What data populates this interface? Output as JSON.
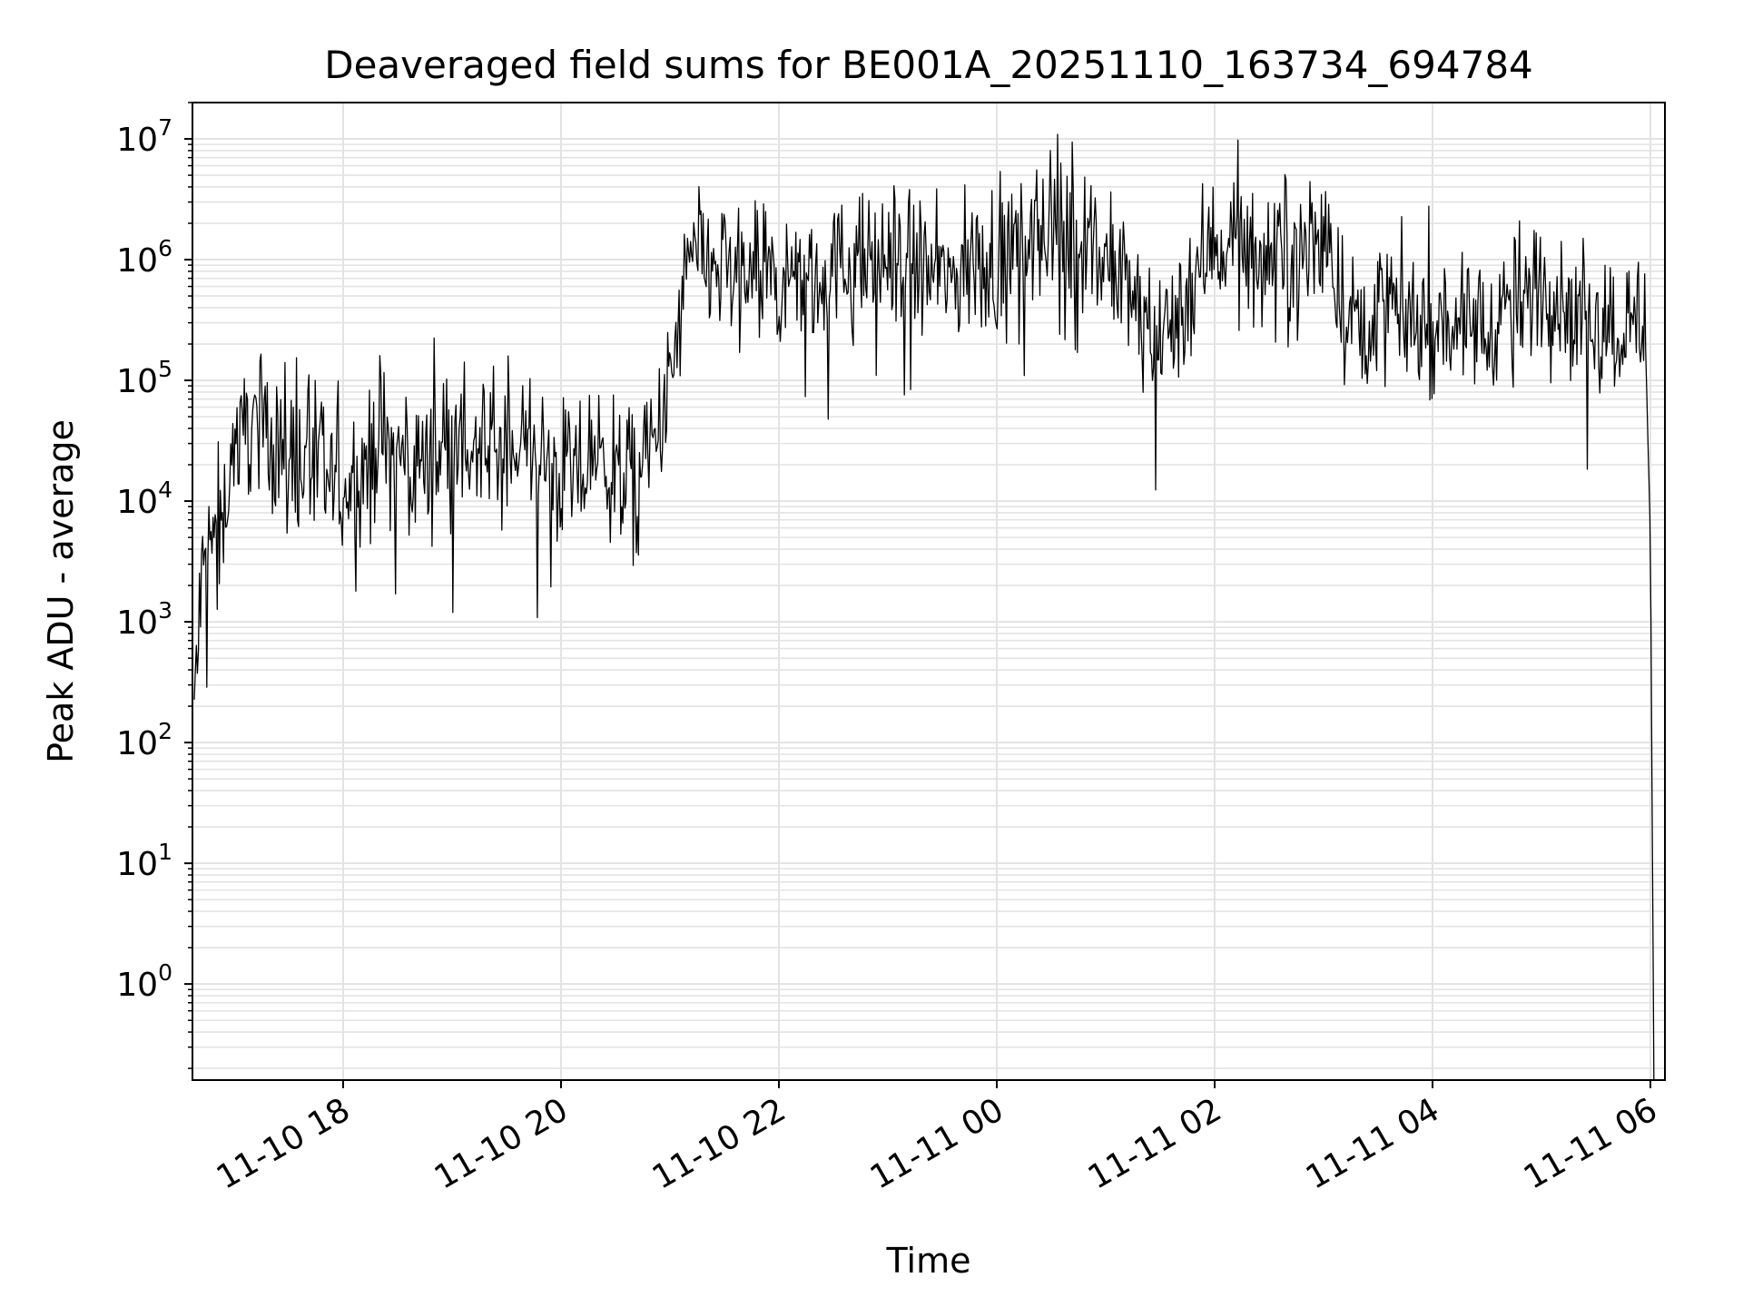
{
  "chart_data": {
    "type": "line",
    "title": "Deaveraged field sums for BE001A_20251110_163734_694784",
    "xlabel": "Time",
    "ylabel": "Peak ADU - average",
    "yscale": "log",
    "ylim": [
      0.16,
      20000000
    ],
    "xlim": [
      "2025-11-10 16:37",
      "2025-11-11 06:08"
    ],
    "grid": true,
    "x_ticks": [
      {
        "label": "11-10 18",
        "value": "2025-11-10 18:00"
      },
      {
        "label": "11-10 20",
        "value": "2025-11-10 20:00"
      },
      {
        "label": "11-10 22",
        "value": "2025-11-10 22:00"
      },
      {
        "label": "11-11 00",
        "value": "2025-11-11 00:00"
      },
      {
        "label": "11-11 02",
        "value": "2025-11-11 02:00"
      },
      {
        "label": "11-11 04",
        "value": "2025-11-11 04:00"
      },
      {
        "label": "11-11 06",
        "value": "2025-11-11 06:00"
      }
    ],
    "y_ticks": [
      {
        "base": "10",
        "exp": "0",
        "value": 1
      },
      {
        "base": "10",
        "exp": "1",
        "value": 10
      },
      {
        "base": "10",
        "exp": "2",
        "value": 100
      },
      {
        "base": "10",
        "exp": "3",
        "value": 1000
      },
      {
        "base": "10",
        "exp": "4",
        "value": 10000
      },
      {
        "base": "10",
        "exp": "5",
        "value": 100000
      },
      {
        "base": "10",
        "exp": "6",
        "value": 1000000
      },
      {
        "base": "10",
        "exp": "7",
        "value": 10000000
      }
    ],
    "series": [
      {
        "color": "#000000",
        "x": [
          "2025-11-10 16:38",
          "2025-11-10 16:42",
          "2025-11-10 16:48",
          "2025-11-10 16:55",
          "2025-11-10 17:00",
          "2025-11-10 17:10",
          "2025-11-10 17:20",
          "2025-11-10 17:30",
          "2025-11-10 17:40",
          "2025-11-10 17:50",
          "2025-11-10 18:00",
          "2025-11-10 18:20",
          "2025-11-10 18:40",
          "2025-11-10 19:00",
          "2025-11-10 19:20",
          "2025-11-10 19:40",
          "2025-11-10 20:00",
          "2025-11-10 20:20",
          "2025-11-10 20:40",
          "2025-11-10 20:50",
          "2025-11-10 21:00",
          "2025-11-10 21:10",
          "2025-11-10 21:20",
          "2025-11-10 21:30",
          "2025-11-10 21:45",
          "2025-11-10 22:00",
          "2025-11-10 22:30",
          "2025-11-10 23:00",
          "2025-11-10 23:30",
          "2025-11-11 00:00",
          "2025-11-11 00:30",
          "2025-11-11 01:00",
          "2025-11-11 01:30",
          "2025-11-11 02:00",
          "2025-11-11 02:30",
          "2025-11-11 03:00",
          "2025-11-11 03:15",
          "2025-11-11 03:30",
          "2025-11-11 04:00",
          "2025-11-11 04:30",
          "2025-11-11 05:00",
          "2025-11-11 05:30",
          "2025-11-11 05:50",
          "2025-11-11 05:57",
          "2025-11-11 06:00",
          "2025-11-11 06:02"
        ],
        "y": [
          200,
          2000,
          5000,
          10000,
          30000,
          50000,
          40000,
          20000,
          25000,
          15000,
          12000,
          30000,
          20000,
          30000,
          25000,
          30000,
          15000,
          20000,
          15000,
          25000,
          80000,
          1000000,
          900000,
          800000,
          700000,
          600000,
          800000,
          1000000,
          700000,
          1000000,
          2000000,
          1000000,
          200000,
          1500000,
          1000000,
          1500000,
          300000,
          400000,
          300000,
          300000,
          600000,
          300000,
          300000,
          300000,
          5000,
          0.1
        ],
        "noise_amplitude_log10": 0.45,
        "samples": 1400
      }
    ]
  }
}
